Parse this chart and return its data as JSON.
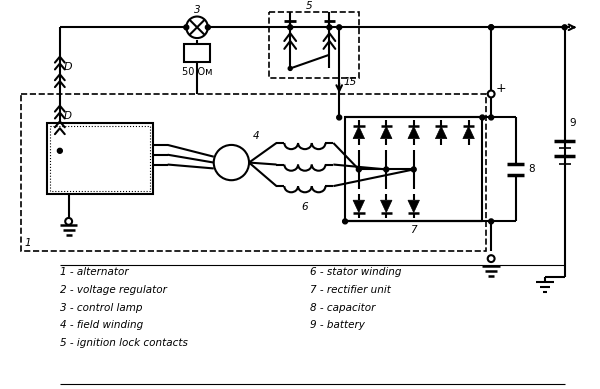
{
  "bg_color": "#ffffff",
  "line_color": "#000000",
  "lw": 1.5,
  "dlw": 1.2,
  "legend_left": [
    "1 - alternator",
    "2 - voltage regulator",
    "3 - control lamp",
    "4 - field winding",
    "5 - ignition lock contacts"
  ],
  "legend_right": [
    "6 - stator winding",
    "7 - rectifier unit",
    "8 - capacitor",
    "9 - battery"
  ]
}
